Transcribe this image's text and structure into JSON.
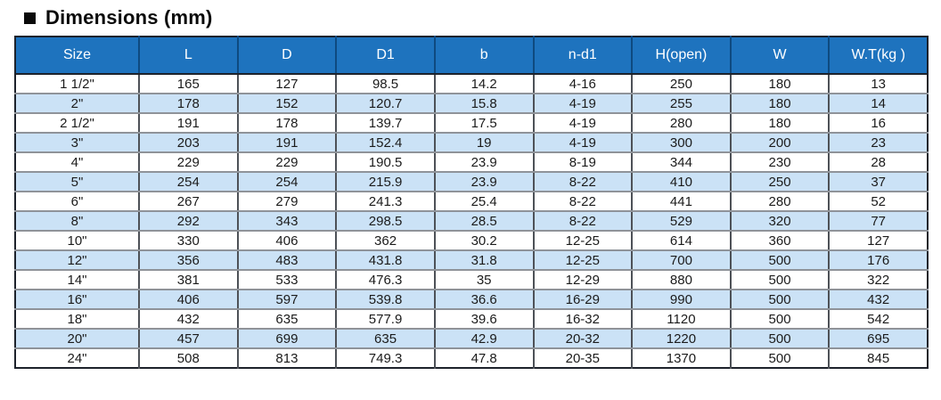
{
  "page": {
    "title": "Dimensions (mm)"
  },
  "colors": {
    "header-bg": "#1e73be",
    "header-divider": "#0e4a80",
    "header-text": "#ffffff",
    "row-alt-bg": "#cbe2f6",
    "outer-border": "#1d222b",
    "body-text": "#1b1b1b"
  },
  "table": {
    "columns": [
      "Size",
      "L",
      "D",
      "D1",
      "b",
      "n-d1",
      "H(open)",
      "W",
      "W.T(kg )"
    ],
    "rows": [
      [
        "1 1/2\"",
        "165",
        "127",
        "98.5",
        "14.2",
        "4-16",
        "250",
        "180",
        "13"
      ],
      [
        "2\"",
        "178",
        "152",
        "120.7",
        "15.8",
        "4-19",
        "255",
        "180",
        "14"
      ],
      [
        "2 1/2\"",
        "191",
        "178",
        "139.7",
        "17.5",
        "4-19",
        "280",
        "180",
        "16"
      ],
      [
        "3\"",
        "203",
        "191",
        "152.4",
        "19",
        "4-19",
        "300",
        "200",
        "23"
      ],
      [
        "4\"",
        "229",
        "229",
        "190.5",
        "23.9",
        "8-19",
        "344",
        "230",
        "28"
      ],
      [
        "5\"",
        "254",
        "254",
        "215.9",
        "23.9",
        "8-22",
        "410",
        "250",
        "37"
      ],
      [
        "6\"",
        "267",
        "279",
        "241.3",
        "25.4",
        "8-22",
        "441",
        "280",
        "52"
      ],
      [
        "8\"",
        "292",
        "343",
        "298.5",
        "28.5",
        "8-22",
        "529",
        "320",
        "77"
      ],
      [
        "10\"",
        "330",
        "406",
        "362",
        "30.2",
        "12-25",
        "614",
        "360",
        "127"
      ],
      [
        "12\"",
        "356",
        "483",
        "431.8",
        "31.8",
        "12-25",
        "700",
        "500",
        "176"
      ],
      [
        "14\"",
        "381",
        "533",
        "476.3",
        "35",
        "12-29",
        "880",
        "500",
        "322"
      ],
      [
        "16\"",
        "406",
        "597",
        "539.8",
        "36.6",
        "16-29",
        "990",
        "500",
        "432"
      ],
      [
        "18\"",
        "432",
        "635",
        "577.9",
        "39.6",
        "16-32",
        "1120",
        "500",
        "542"
      ],
      [
        "20\"",
        "457",
        "699",
        "635",
        "42.9",
        "20-32",
        "1220",
        "500",
        "695"
      ],
      [
        "24\"",
        "508",
        "813",
        "749.3",
        "47.8",
        "20-35",
        "1370",
        "500",
        "845"
      ]
    ]
  }
}
